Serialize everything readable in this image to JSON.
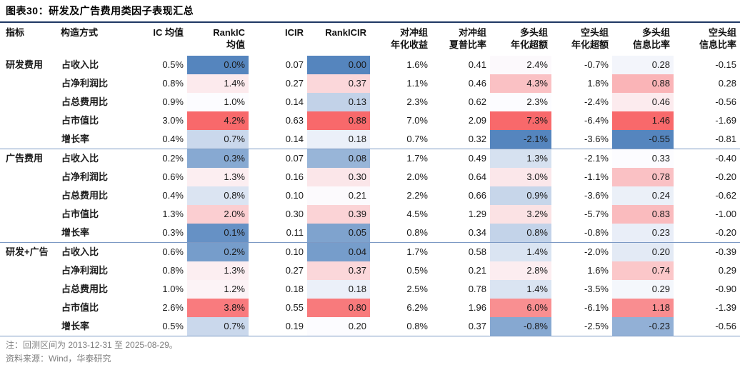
{
  "colors": {
    "title_rule": "#1F3864",
    "separator": "#7C99C4",
    "note_text": "#7F7F7F",
    "heat_min": "#5585BE",
    "heat_mid": "#FCFCFF",
    "heat_max": "#F8696B"
  },
  "notes": {
    "note": "注：回测区间为 2013-12-31 至 2025-08-29。",
    "source": "资料来源：Wind，华泰研究"
  },
  "chart_data": {
    "type": "table",
    "title": "图表30：研发及广告费用类因子表现汇总",
    "columns": [
      {
        "line1": "指标",
        "line2": ""
      },
      {
        "line1": "构造方式",
        "line2": ""
      },
      {
        "line1": "IC 均值",
        "line2": ""
      },
      {
        "line1": "RankIC",
        "line2": "均值"
      },
      {
        "line1": "ICIR",
        "line2": ""
      },
      {
        "line1": "RankICIR",
        "line2": ""
      },
      {
        "line1": "对冲组",
        "line2": "年化收益"
      },
      {
        "line1": "对冲组",
        "line2": "夏普比率"
      },
      {
        "line1": "多头组",
        "line2": "年化超额"
      },
      {
        "line1": "空头组",
        "line2": "年化超额"
      },
      {
        "line1": "多头组",
        "line2": "信息比率"
      },
      {
        "line1": "空头组",
        "line2": "信息比率"
      }
    ],
    "heat_column_indices": [
      1,
      3,
      6,
      8
    ],
    "heat_scale": {
      "low": "#5585BE",
      "mid": "#FCFCFF",
      "high": "#F8696B"
    },
    "groups": [
      {
        "name": "研发费用",
        "rows": [
          {
            "method": "占收入比",
            "cells": [
              "0.5%",
              "0.0%",
              "0.07",
              "0.00",
              "1.6%",
              "0.41",
              "2.4%",
              "-0.7%",
              "0.28",
              "-0.15"
            ]
          },
          {
            "method": "占净利润比",
            "cells": [
              "0.8%",
              "1.4%",
              "0.27",
              "0.37",
              "1.1%",
              "0.46",
              "4.3%",
              "1.8%",
              "0.88",
              "0.28"
            ]
          },
          {
            "method": "占总费用比",
            "cells": [
              "0.9%",
              "1.0%",
              "0.14",
              "0.13",
              "2.3%",
              "0.62",
              "2.3%",
              "-2.4%",
              "0.46",
              "-0.56"
            ]
          },
          {
            "method": "占市值比",
            "cells": [
              "3.0%",
              "4.2%",
              "0.63",
              "0.88",
              "7.0%",
              "2.09",
              "7.3%",
              "-6.4%",
              "1.46",
              "-1.69"
            ]
          },
          {
            "method": "增长率",
            "cells": [
              "0.4%",
              "0.7%",
              "0.14",
              "0.18",
              "0.7%",
              "0.32",
              "-2.1%",
              "-3.6%",
              "-0.55",
              "-0.81"
            ]
          }
        ]
      },
      {
        "name": "广告费用",
        "rows": [
          {
            "method": "占收入比",
            "cells": [
              "0.2%",
              "0.3%",
              "0.07",
              "0.08",
              "1.7%",
              "0.49",
              "1.3%",
              "-2.1%",
              "0.33",
              "-0.40"
            ]
          },
          {
            "method": "占净利润比",
            "cells": [
              "0.6%",
              "1.3%",
              "0.16",
              "0.30",
              "2.0%",
              "0.64",
              "3.0%",
              "-1.1%",
              "0.78",
              "-0.20"
            ]
          },
          {
            "method": "占总费用比",
            "cells": [
              "0.4%",
              "0.8%",
              "0.10",
              "0.21",
              "2.2%",
              "0.66",
              "0.9%",
              "-3.6%",
              "0.24",
              "-0.62"
            ]
          },
          {
            "method": "占市值比",
            "cells": [
              "1.3%",
              "2.0%",
              "0.30",
              "0.39",
              "4.5%",
              "1.29",
              "3.2%",
              "-5.7%",
              "0.83",
              "-1.00"
            ]
          },
          {
            "method": "增长率",
            "cells": [
              "0.3%",
              "0.1%",
              "0.11",
              "0.05",
              "0.8%",
              "0.34",
              "0.8%",
              "-0.8%",
              "0.23",
              "-0.20"
            ]
          }
        ]
      },
      {
        "name": "研发+广告",
        "rows": [
          {
            "method": "占收入比",
            "cells": [
              "0.6%",
              "0.2%",
              "0.10",
              "0.04",
              "1.7%",
              "0.58",
              "1.4%",
              "-2.0%",
              "0.20",
              "-0.39"
            ]
          },
          {
            "method": "占净利润比",
            "cells": [
              "0.8%",
              "1.3%",
              "0.27",
              "0.37",
              "0.5%",
              "0.21",
              "2.8%",
              "1.6%",
              "0.74",
              "0.29"
            ]
          },
          {
            "method": "占总费用比",
            "cells": [
              "1.0%",
              "1.2%",
              "0.18",
              "0.18",
              "2.5%",
              "0.78",
              "1.4%",
              "-3.5%",
              "0.29",
              "-0.90"
            ]
          },
          {
            "method": "占市值比",
            "cells": [
              "2.6%",
              "3.8%",
              "0.55",
              "0.80",
              "6.2%",
              "1.96",
              "6.0%",
              "-6.1%",
              "1.18",
              "-1.39"
            ]
          },
          {
            "method": "增长率",
            "cells": [
              "0.5%",
              "0.7%",
              "0.19",
              "0.20",
              "0.8%",
              "0.37",
              "-0.8%",
              "-2.5%",
              "-0.23",
              "-0.56"
            ]
          }
        ]
      }
    ]
  }
}
